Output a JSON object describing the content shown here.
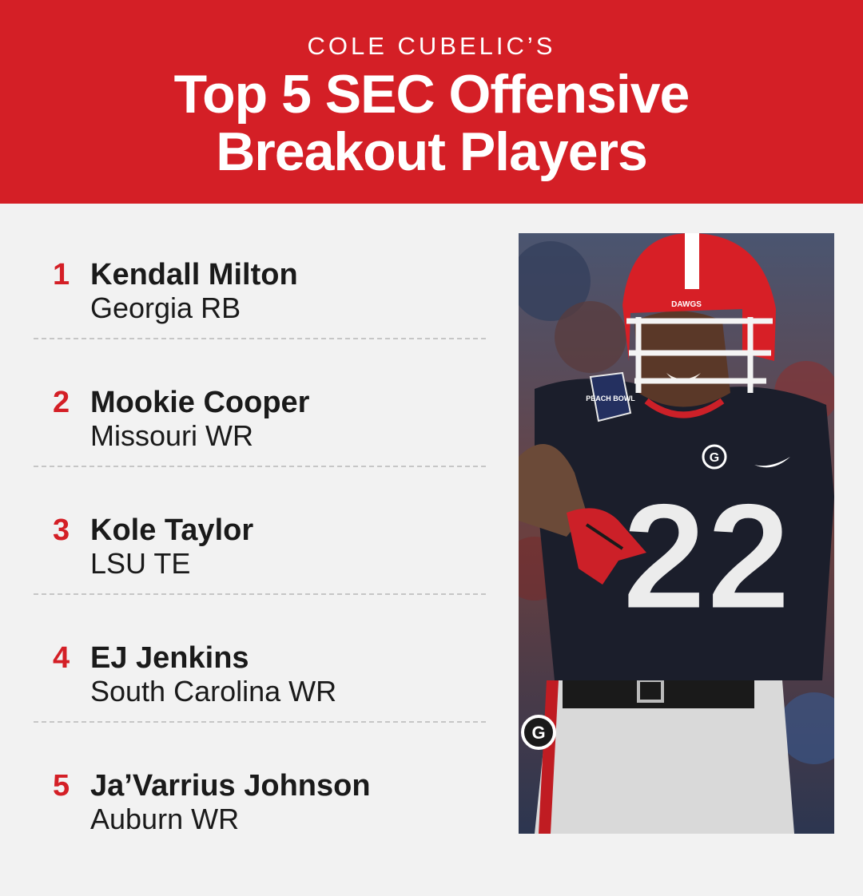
{
  "header": {
    "kicker": "COLE CUBELIC’S",
    "title_line1": "Top 5 SEC Offensive",
    "title_line2": "Breakout Players"
  },
  "players": [
    {
      "rank": "1",
      "name": "Kendall Milton",
      "position": "Georgia RB"
    },
    {
      "rank": "2",
      "name": "Mookie Cooper",
      "position": "Missouri WR"
    },
    {
      "rank": "3",
      "name": "Kole Taylor",
      "position": "LSU TE"
    },
    {
      "rank": "4",
      "name": "EJ Jenkins",
      "position": "South Carolina WR"
    },
    {
      "rank": "5",
      "name": "Ja’Varrius Johnson",
      "position": "Auburn WR"
    }
  ],
  "photo": {
    "jersey_number": "22",
    "helmet_text": "DAWGS",
    "patch_text": "PEACH BOWL"
  },
  "colors": {
    "brand_red": "#d41f26",
    "background": "#f2f2f2",
    "text": "#1a1a1a"
  }
}
